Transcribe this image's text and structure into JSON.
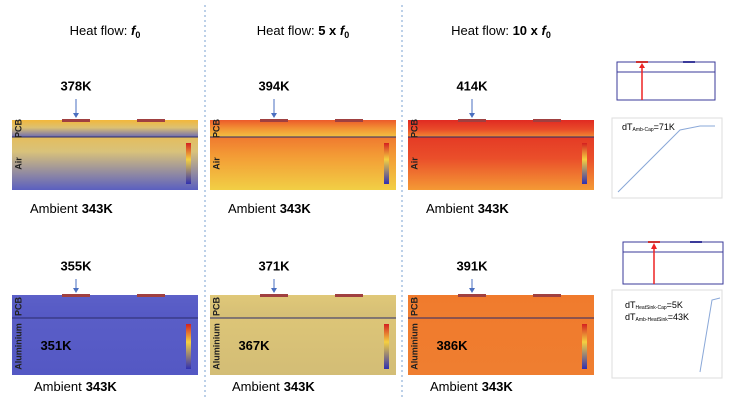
{
  "columns": [
    {
      "header": {
        "prefix": "Heat flow: ",
        "symbol": "f",
        "subscript": "0"
      }
    },
    {
      "header": {
        "prefix": "Heat flow: ",
        "factor": "5 x ",
        "symbol": "f",
        "subscript": "0"
      }
    },
    {
      "header": {
        "prefix": "Heat flow: ",
        "factor": "10 x ",
        "symbol": "f",
        "subscript": "0"
      }
    }
  ],
  "rows": [
    {
      "layer_top": "PCB",
      "layer_bottom": "Air",
      "panels": [
        {
          "peak": "378K",
          "ambient_label": "Ambient",
          "ambient": "343K"
        },
        {
          "peak": "394K",
          "ambient_label": "Ambient",
          "ambient": "343K"
        },
        {
          "peak": "414K",
          "ambient_label": "Ambient",
          "ambient": "343K"
        }
      ]
    },
    {
      "layer_top": "PCB",
      "layer_bottom": "Aluminium",
      "panels": [
        {
          "peak": "355K",
          "interior": "351K",
          "ambient_label": "Ambient",
          "ambient": "343K"
        },
        {
          "peak": "371K",
          "interior": "367K",
          "ambient_label": "Ambient",
          "ambient": "343K"
        },
        {
          "peak": "391K",
          "interior": "386K",
          "ambient_label": "Ambient",
          "ambient": "343K"
        }
      ]
    }
  ],
  "right": {
    "top_plot": {
      "labels": [
        {
          "label": "dT",
          "subscript": "Amb-Cap",
          "value": "=71K"
        }
      ]
    },
    "bottom_plot": {
      "labels": [
        {
          "label": "dT",
          "subscript": "HeatSink-Cap",
          "value": "=5K"
        },
        {
          "label": "dT",
          "subscript": "Amb-HeatSink",
          "value": "=43K"
        }
      ]
    }
  }
}
